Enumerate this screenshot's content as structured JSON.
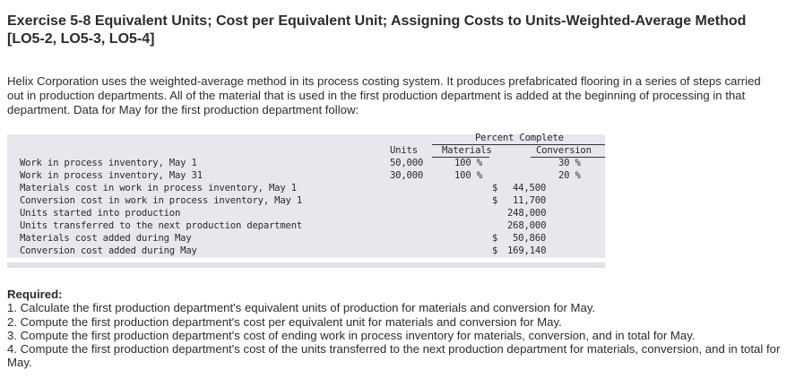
{
  "exercise": {
    "title": "Exercise 5-8 Equivalent Units; Cost per Equivalent Unit; Assigning Costs to Units-Weighted-Average Method [LO5-2, LO5-3, LO5-4]",
    "intro": "Helix Corporation uses the weighted-average method in its process costing system. It produces prefabricated flooring in a series of steps carried out in production departments. All of the material that is used in the first production department is added at the beginning of processing in that department. Data for May for the first production department follow:"
  },
  "data_table": {
    "percent_complete_header": "Percent Complete",
    "col_units": "Units",
    "col_materials": "Materials",
    "col_conversion": "Conversion",
    "rows": [
      {
        "label": "Work in process inventory, May 1",
        "units": "50,000",
        "materials": "100 %",
        "conversion": "30 %",
        "amount_sign": "",
        "amount": ""
      },
      {
        "label": "Work in process inventory, May 31",
        "units": "30,000",
        "materials": "100 %",
        "conversion": "20 %",
        "amount_sign": "",
        "amount": ""
      },
      {
        "label": "Materials cost in work in process inventory, May 1",
        "units": "",
        "materials": "",
        "conversion": "",
        "amount_sign": "$",
        "amount": "44,500"
      },
      {
        "label": "Conversion cost in work in process inventory, May 1",
        "units": "",
        "materials": "",
        "conversion": "",
        "amount_sign": "$",
        "amount": "11,700"
      },
      {
        "label": "Units started into production",
        "units": "",
        "materials": "",
        "conversion": "",
        "amount_sign": "",
        "amount": "248,000"
      },
      {
        "label": "Units transferred to the next production department",
        "units": "",
        "materials": "",
        "conversion": "",
        "amount_sign": "",
        "amount": "268,000"
      },
      {
        "label": "Materials cost added during May",
        "units": "",
        "materials": "",
        "conversion": "",
        "amount_sign": "$",
        "amount": "50,860"
      },
      {
        "label": "Conversion cost added during May",
        "units": "",
        "materials": "",
        "conversion": "",
        "amount_sign": "$",
        "amount": "169,140"
      }
    ]
  },
  "required": {
    "label": "Required:",
    "items": [
      "1. Calculate the first production department's equivalent units of production for materials and conversion for May.",
      "2. Compute the first production department's cost per equivalent unit for materials and conversion for May.",
      "3. Compute the first production department's cost of ending work in process inventory for materials, conversion, and in total for May.",
      "4. Compute the first production department's cost of the units transferred to the next production department for materials, conversion, and in total for May."
    ]
  }
}
